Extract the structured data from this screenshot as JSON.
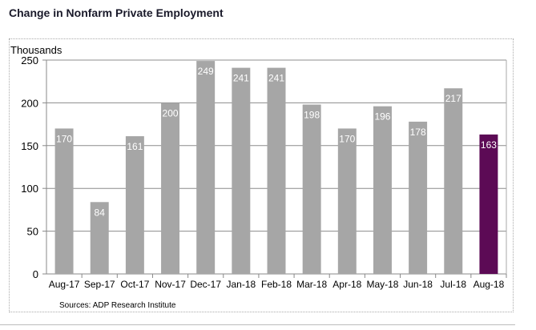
{
  "title": "Change in Nonfarm Private Employment",
  "chart_data": {
    "type": "bar",
    "ylabel": "Thousands",
    "ylim": [
      0,
      250
    ],
    "yticks": [
      0,
      50,
      100,
      150,
      200,
      250
    ],
    "grid": true,
    "categories": [
      "Aug-17",
      "Sep-17",
      "Oct-17",
      "Nov-17",
      "Dec-17",
      "Jan-18",
      "Feb-18",
      "Mar-18",
      "Apr-18",
      "May-18",
      "Jun-18",
      "Jul-18",
      "Aug-18"
    ],
    "values": [
      170,
      84,
      161,
      200,
      249,
      241,
      241,
      198,
      170,
      196,
      178,
      217,
      163
    ],
    "bar_color": "#a6a6a6",
    "highlight_color": "#5c0a55",
    "highlight_index": 12,
    "source": "Sources: ADP Research Institute"
  }
}
